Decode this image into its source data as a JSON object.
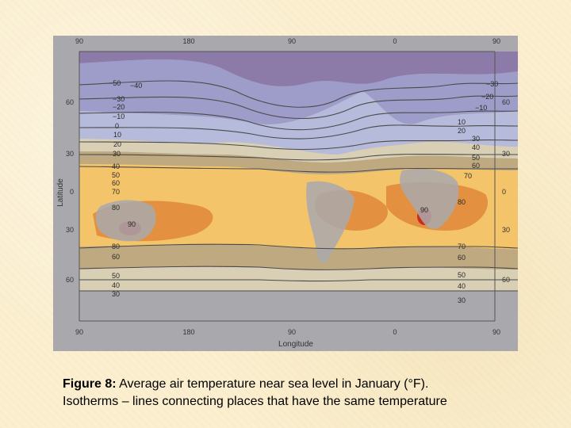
{
  "map": {
    "top_longitudes": [
      "90",
      "180",
      "90",
      "0",
      "90"
    ],
    "bottom_longitudes": [
      "90",
      "180",
      "90",
      "0",
      "90"
    ],
    "left_latitudes": [
      "60",
      "30",
      "0",
      "30",
      "60"
    ],
    "right_latitudes": [
      "60",
      "30",
      "0",
      "30",
      "60"
    ],
    "ylabel": "Latitude",
    "xlabel": "Longitude",
    "isotherms": {
      "pacific_left": [
        "−50",
        "−40",
        "−30",
        "−20",
        "−10",
        "0",
        "10",
        "20",
        "30",
        "40",
        "50",
        "60",
        "70",
        "80",
        "90",
        "80",
        "70",
        "60",
        "50",
        "40",
        "30"
      ],
      "atlantic_right": [
        "−30",
        "−20",
        "−10",
        "10",
        "20",
        "30",
        "40",
        "50",
        "60",
        "70",
        "90",
        "80",
        "70",
        "60",
        "50",
        "40",
        "30"
      ]
    },
    "colors": {
      "coldest": "#8c7aa8",
      "cold": "#9d9ccb",
      "cool": "#b8bde0",
      "land": "#a9a9ad",
      "mild": "#d8cfb5",
      "temperate": "#bfa980",
      "warm": "#f3c46a",
      "hot": "#e39140",
      "hottest": "#cc2b1b"
    }
  },
  "caption": {
    "label": "Figure 8:",
    "text": " Average air temperature near sea level in January (°F).",
    "line2": "Isotherms – lines connecting places that have the same temperature"
  }
}
